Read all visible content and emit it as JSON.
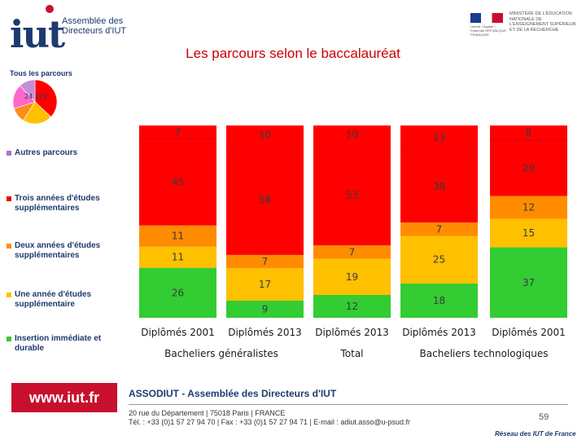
{
  "header": {
    "logo_text": "iut",
    "logo_caption": "Assemblée des Directeurs d'IUT",
    "ministry_text": "MINISTÈRE DE L'ÉDUCATION NATIONALE DE L'ENSEIGNEMENT SUPÉRIEUR ET DE LA RECHERCHE",
    "ministry_sub": "Liberté • Égalité • Fraternité RÉPUBLIQUE FRANÇAISE",
    "title": "Les parcours selon le baccalauréat"
  },
  "pie": {
    "label": "Tous les parcours",
    "values_text": "24 225",
    "slices": [
      {
        "name": "Insertion immédiate et durable",
        "value": 37,
        "color": "#ff0000"
      },
      {
        "name": "Une année d'études supplémentaire",
        "value": 22,
        "color": "#ffc000"
      },
      {
        "name": "Deux années d'études supplémentaires",
        "value": 11,
        "color": "#ff8c1a"
      },
      {
        "name": "Trois années d'études supplémentaires",
        "value": 18,
        "color": "#ff66cc"
      },
      {
        "name": "Autres parcours",
        "value": 12,
        "color": "#c58fd6"
      }
    ]
  },
  "legend": [
    {
      "label": "Autres parcours",
      "color": "#b36fd0"
    },
    {
      "label": "Trois années d'études supplémentaires",
      "color": "#e60000"
    },
    {
      "label": "Deux années d'études supplémentaires",
      "color": "#ff8c00"
    },
    {
      "label": "Une année d'études supplémentaire",
      "color": "#ffc000"
    },
    {
      "label": "Insertion immédiate et durable",
      "color": "#33cc33"
    }
  ],
  "chart_data": {
    "type": "bar",
    "stacked": true,
    "percent": true,
    "title": "Les parcours selon le baccalauréat",
    "categories": [
      "Diplômés 2001",
      "Diplômés 2013",
      "Diplômés 2013",
      "Diplômés 2013",
      "Diplômés 2001"
    ],
    "groups": [
      {
        "label": "Bacheliers généralistes",
        "categories": [
          0,
          1
        ]
      },
      {
        "label": "Total",
        "categories": [
          2
        ]
      },
      {
        "label": "Bacheliers technologiques",
        "categories": [
          3,
          4
        ]
      }
    ],
    "series": [
      {
        "name": "Insertion immédiate et durable",
        "color": "#33cc33",
        "values": [
          26,
          9,
          12,
          18,
          37
        ]
      },
      {
        "name": "Une année d'études supplémentaire",
        "color": "#ffc000",
        "values": [
          11,
          17,
          19,
          25,
          15
        ]
      },
      {
        "name": "Deux années d'études supplémentaires",
        "color": "#ff8c00",
        "values": [
          11,
          7,
          7,
          7,
          12
        ]
      },
      {
        "name": "Trois années d'études supplémentaires",
        "color": "#ff0000",
        "values": [
          45,
          58,
          53,
          38,
          29
        ]
      },
      {
        "name": "Autres parcours",
        "color": "#ff0000",
        "values": [
          7,
          10,
          10,
          13,
          8
        ]
      }
    ],
    "ylim": [
      0,
      100
    ]
  },
  "footer": {
    "url": "www.iut.fr",
    "org": "ASSODIUT - Assemblée des Directeurs d'IUT",
    "address": "20 rue du Département | 75018 Paris | FRANCE",
    "contact": "Tél. : +33 (0)1 57 27 94 70 | Fax : +33 (0)1 57 27 94 71 | E-mail : adiut.asso@u-psud.fr",
    "page_number": "59",
    "network": "Réseau des IUT de France"
  }
}
